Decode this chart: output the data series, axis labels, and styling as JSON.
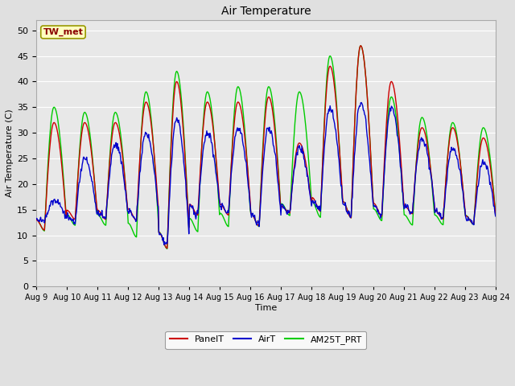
{
  "title": "Air Temperature",
  "xlabel": "Time",
  "ylabel": "Air Temperature (C)",
  "ylim": [
    0,
    52
  ],
  "yticks": [
    0,
    5,
    10,
    15,
    20,
    25,
    30,
    35,
    40,
    45,
    50
  ],
  "fig_bg_color": "#e0e0e0",
  "plot_bg_color": "#e8e8e8",
  "grid_color": "#ffffff",
  "site_label": "TW_met",
  "series": [
    {
      "name": "PanelT",
      "color": "#cc0000",
      "lw": 1.0
    },
    {
      "name": "AirT",
      "color": "#0000cc",
      "lw": 1.0
    },
    {
      "name": "AM25T_PRT",
      "color": "#00cc00",
      "lw": 1.0
    }
  ],
  "x_labels": [
    "Aug 9",
    "Aug 10",
    "Aug 11",
    "Aug 12",
    "Aug 13",
    "Aug 14",
    "Aug 15",
    "Aug 16",
    "Aug 17",
    "Aug 18",
    "Aug 19",
    "Aug 20",
    "Aug 21",
    "Aug 22",
    "Aug 23",
    "Aug 24"
  ],
  "panel_peaks": [
    32,
    32,
    32,
    36,
    40,
    36,
    36,
    37,
    28,
    43,
    47,
    40,
    31,
    31,
    29
  ],
  "panel_mins": [
    12,
    14,
    14,
    14,
    9,
    15,
    15,
    13,
    15,
    16,
    15,
    15,
    15,
    14,
    13
  ],
  "air_peaks": [
    17,
    25,
    28,
    30,
    33,
    30,
    31,
    31,
    27,
    35,
    36,
    35,
    29,
    27,
    24
  ],
  "air_mins": [
    13,
    13,
    14,
    14,
    9,
    15,
    15,
    13,
    15,
    16,
    15,
    15,
    15,
    14,
    13
  ],
  "green_peaks": [
    35,
    34,
    34,
    38,
    42,
    38,
    39,
    39,
    38,
    45,
    47,
    37,
    33,
    32,
    31
  ],
  "green_mins": [
    12,
    13,
    13,
    11,
    9,
    12,
    13,
    13,
    15,
    15,
    15,
    14,
    13,
    13,
    13
  ]
}
